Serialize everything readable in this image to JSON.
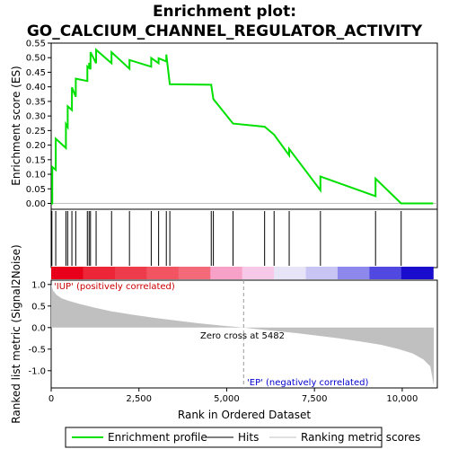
{
  "chart_data": {
    "type": "line",
    "title_line1": "Enrichment plot:",
    "title_line2": "GO_CALCIUM_CHANNEL_REGULATOR_ACTIVITY",
    "top_panel": {
      "ylabel": "Enrichment score (ES)",
      "ylim": [
        -0.02,
        0.55
      ],
      "yticks": [
        "0.00",
        "0.05",
        "0.10",
        "0.15",
        "0.20",
        "0.25",
        "0.30",
        "0.35",
        "0.40",
        "0.45",
        "0.50",
        "0.55"
      ],
      "series": [
        {
          "name": "Enrichment profile",
          "color": "#00e000",
          "x": [
            0,
            30,
            30,
            130,
            130,
            420,
            420,
            470,
            470,
            590,
            590,
            700,
            700,
            1030,
            1030,
            1080,
            1080,
            1120,
            1120,
            1280,
            1280,
            1720,
            1720,
            2230,
            2230,
            2850,
            2850,
            3060,
            3060,
            3280,
            3280,
            3380,
            3380,
            4560,
            4560,
            4620,
            4620,
            5180,
            5180,
            6080,
            6080,
            6350,
            6350,
            6780,
            6780,
            7670,
            7670,
            9240,
            9240,
            9970,
            9970,
            10880
          ],
          "y": [
            0.0,
            0.0,
            0.125,
            0.115,
            0.222,
            0.19,
            0.272,
            0.262,
            0.333,
            0.32,
            0.398,
            0.366,
            0.428,
            0.42,
            0.47,
            0.465,
            0.482,
            0.46,
            0.519,
            0.481,
            0.527,
            0.481,
            0.519,
            0.462,
            0.492,
            0.469,
            0.499,
            0.481,
            0.498,
            0.487,
            0.511,
            0.409,
            0.409,
            0.407,
            0.405,
            0.358,
            0.358,
            0.274,
            0.274,
            0.263,
            0.263,
            0.236,
            0.236,
            0.165,
            0.187,
            0.045,
            0.092,
            0.025,
            0.085,
            0.0,
            0.0,
            0.0
          ]
        }
      ]
    },
    "hits": [
      20,
      130,
      420,
      470,
      590,
      700,
      1030,
      1080,
      1120,
      1280,
      1720,
      2230,
      2850,
      3060,
      3280,
      3380,
      4560,
      4620,
      5180,
      6080,
      6350,
      6780,
      7670,
      9240,
      9970
    ],
    "bottom_panel": {
      "ylabel": "Ranked list metric (Signal2Noise)",
      "ylim": [
        -1.4,
        1.1
      ],
      "yticks": [
        "-1.0",
        "-0.5",
        "0.0",
        "0.5",
        "1.0"
      ],
      "metric_x": [
        0,
        50,
        150,
        300,
        500,
        800,
        1200,
        1700,
        2300,
        3000,
        3600,
        4200,
        4800,
        5200,
        5482,
        5800,
        6400,
        7000,
        7600,
        8200,
        8800,
        9400,
        9900,
        10300,
        10600,
        10800,
        10900
      ],
      "metric_y": [
        1.0,
        0.86,
        0.76,
        0.68,
        0.62,
        0.55,
        0.47,
        0.38,
        0.3,
        0.22,
        0.16,
        0.1,
        0.05,
        0.02,
        0.0,
        -0.03,
        -0.08,
        -0.13,
        -0.19,
        -0.25,
        -0.32,
        -0.4,
        -0.5,
        -0.6,
        -0.74,
        -0.9,
        -1.35
      ],
      "pos_label": "'IUP' (positively correlated)",
      "neg_label": "'EP' (negatively correlated)",
      "zero_cross_label": "Zero cross at 5482",
      "zero_cross": 5482
    },
    "xlabel": "Rank in Ordered Dataset",
    "xlim": [
      0,
      11000
    ],
    "xticks": [
      "0",
      "2,500",
      "5,000",
      "7,500",
      "10,000"
    ],
    "xtick_values": [
      0,
      2500,
      5000,
      7500,
      10000
    ],
    "n_genes": 10880,
    "legend": {
      "placement": "bottom",
      "items": [
        "Enrichment profile",
        "Hits",
        "Ranking metric scores"
      ]
    }
  }
}
